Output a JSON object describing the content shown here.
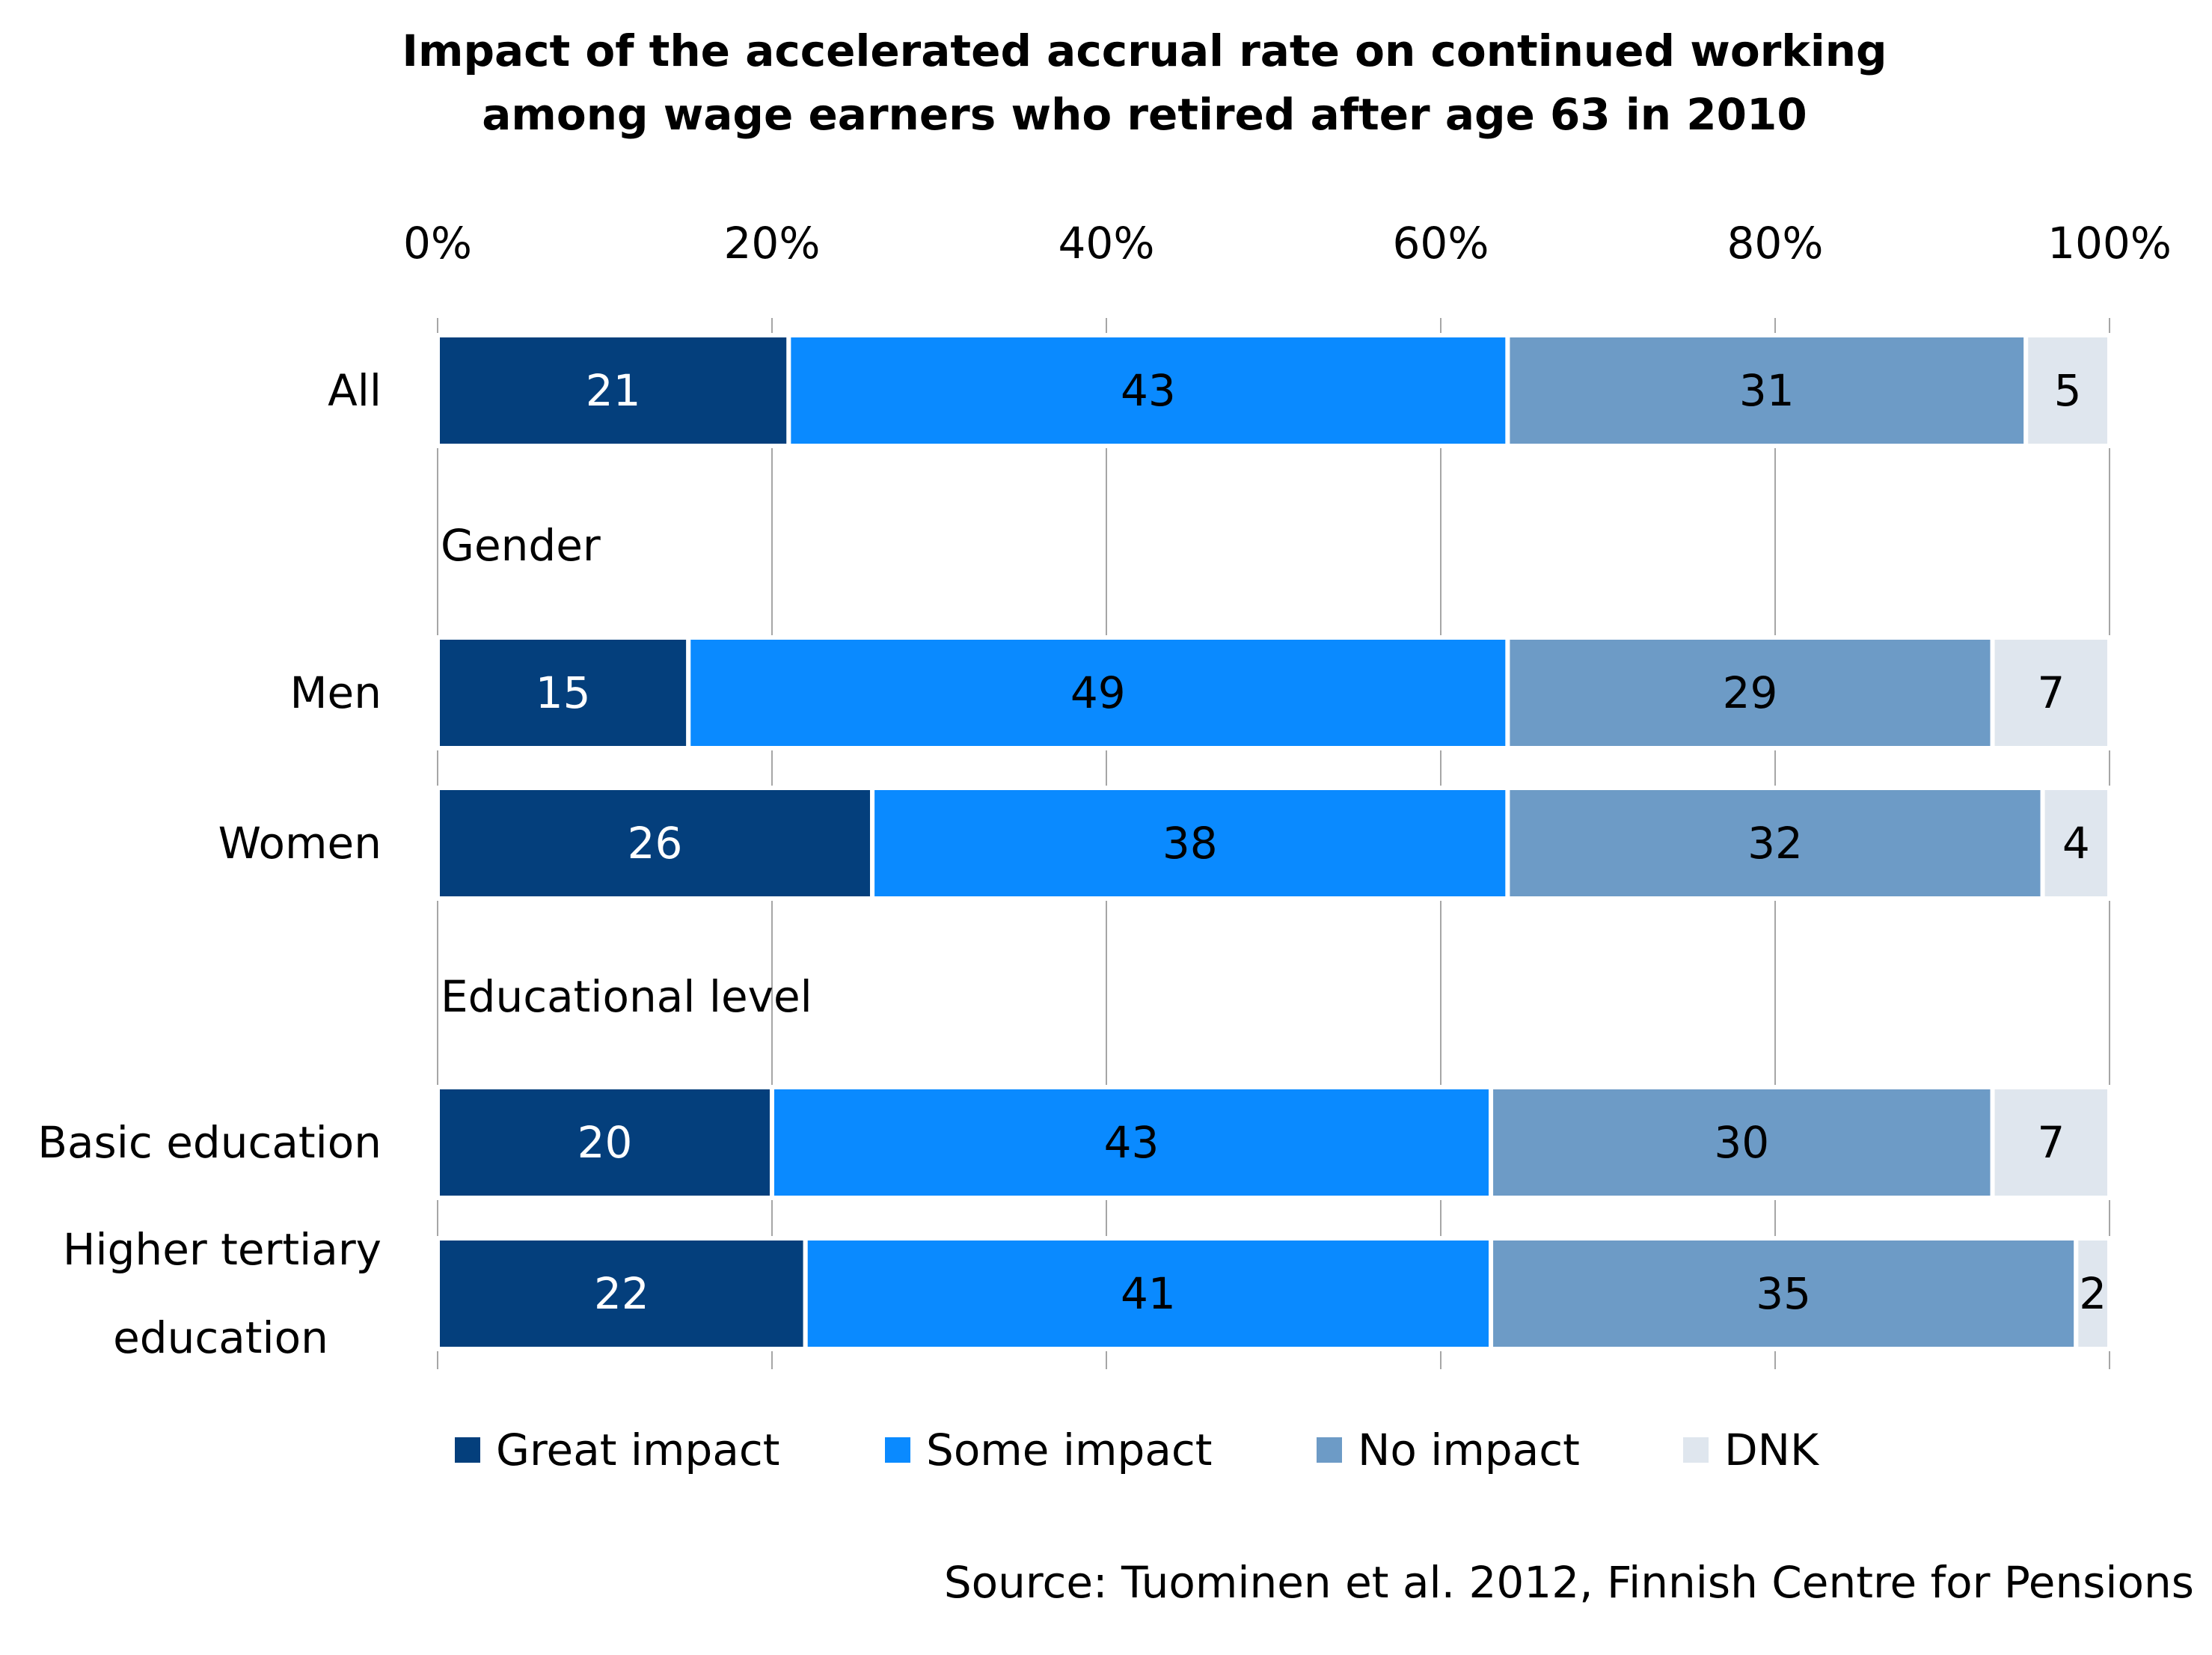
{
  "chart_data": {
    "type": "bar",
    "orientation": "horizontal",
    "stacked": "percent",
    "title_lines": [
      "Impact of the accelerated accrual rate on continued working",
      "among wage earners who retired after age 63 in 2010"
    ],
    "xlim": [
      0,
      100
    ],
    "x_ticks": [
      "0%",
      "20%",
      "40%",
      "60%",
      "80%",
      "100%"
    ],
    "x_tick_values": [
      0,
      20,
      40,
      60,
      80,
      100
    ],
    "grid": true,
    "legend_position": "bottom",
    "rows": [
      {
        "kind": "bar",
        "label_lines": [
          "All"
        ],
        "values": [
          21,
          43,
          31,
          5
        ]
      },
      {
        "kind": "group",
        "label": "Gender"
      },
      {
        "kind": "bar",
        "label_lines": [
          "Men"
        ],
        "values": [
          15,
          49,
          29,
          7
        ]
      },
      {
        "kind": "bar",
        "label_lines": [
          "Women"
        ],
        "values": [
          26,
          38,
          32,
          4
        ]
      },
      {
        "kind": "group",
        "label": "Educational level"
      },
      {
        "kind": "bar",
        "label_lines": [
          "Basic education"
        ],
        "values": [
          20,
          43,
          30,
          7
        ]
      },
      {
        "kind": "bar",
        "label_lines": [
          "Higher tertiary",
          "education"
        ],
        "values": [
          22,
          41,
          35,
          2
        ]
      }
    ],
    "series": [
      {
        "name": "Great impact",
        "color": "#043f7c",
        "label_color": "#ffffff"
      },
      {
        "name": "Some impact",
        "color": "#0a8aff",
        "label_color": "#000000"
      },
      {
        "name": "No impact",
        "color": "#6d9bc6",
        "label_color": "#000000"
      },
      {
        "name": "DNK",
        "color": "#dfe6ee",
        "label_color": "#000000"
      }
    ],
    "source": "Source: Tuominen et al. 2012, Finnish Centre for Pensions"
  }
}
